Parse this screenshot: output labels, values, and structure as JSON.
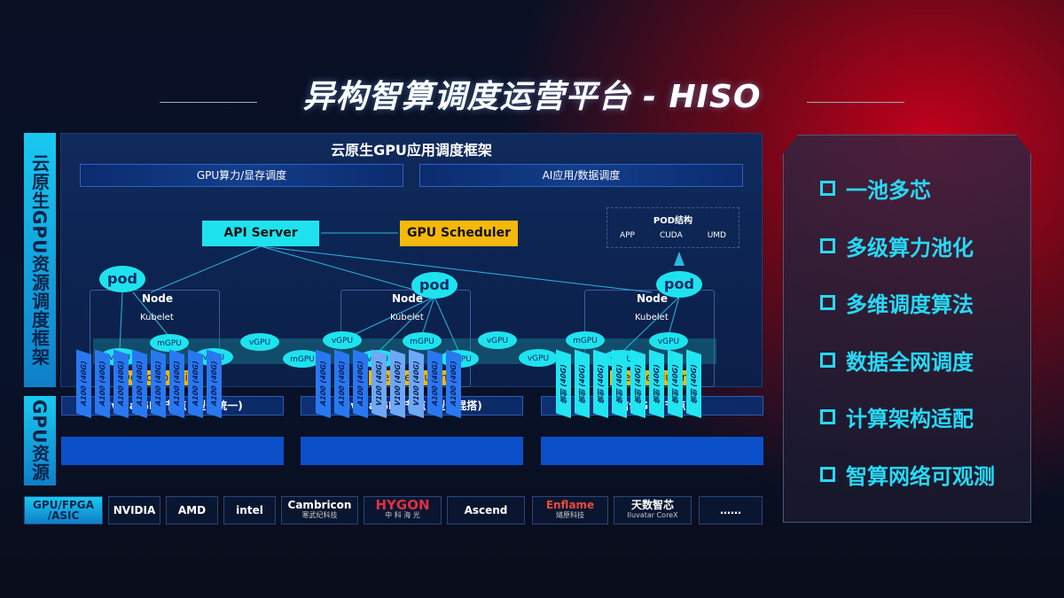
{
  "title": "异构智算调度运营平台 - HISO",
  "side_labels": {
    "framework": "云原生GPU资源调度框架",
    "resources": "GPU资源"
  },
  "framework": {
    "title": "云原生GPU应用调度框架",
    "bars": [
      "GPU算力/显存调度",
      "AI应用/数据调度"
    ],
    "api_server": "API Server",
    "gpu_scheduler": "GPU Scheduler",
    "pod_structure": {
      "title": "POD结构",
      "items": [
        "APP",
        "CUDA",
        "UMD"
      ]
    },
    "pod_label": "pod",
    "node_label": "Node",
    "kubelet_label": "Kubelet",
    "device_plugin": "Device plugin",
    "vgpu": "vGPU",
    "mgpu": "mGPU"
  },
  "gpu_nodes": [
    {
      "title": "Nvdia GPU节点 (型号统一)",
      "cards": [
        "A100 (40G)",
        "A100 (40G)",
        "A100 (40G)",
        "A100 (40G)",
        "A100 (40G)",
        "A100 (40G)",
        "A100 (40G)",
        "A100 (40G)"
      ]
    },
    {
      "title": "Nvdia GPU节点 (型号混搭)",
      "cards": [
        "A100 (40G)",
        "A100 (40G)",
        "A100 (40G)",
        "V100 (40G)",
        "V100 (40G)",
        "V100 (40G)",
        "A100 (40G)",
        "A100 (40G)"
      ]
    },
    {
      "title": "信创GPU节点",
      "cards": [
        "信创 (40G)",
        "信创 (40G)",
        "信创 (40G)",
        "信创 (40G)",
        "信创 (40G)",
        "信创 (40G)",
        "信创 (40G)",
        "信创 (40G)"
      ]
    }
  ],
  "vendors": {
    "category": [
      "GPU/FPGA",
      "/ASIC"
    ],
    "items": [
      [
        "NVIDIA",
        ""
      ],
      [
        "AMD",
        ""
      ],
      [
        "intel",
        ""
      ],
      [
        "Cambricon",
        "寒武纪科技"
      ],
      [
        "HYGON",
        "中 科 海 光"
      ],
      [
        "Ascend",
        ""
      ],
      [
        "Enflame",
        "燧原科技"
      ],
      [
        "天数智芯",
        "Iluvatar CoreX"
      ],
      [
        "……",
        ""
      ]
    ]
  },
  "features": [
    "一池多芯",
    "多级算力池化",
    "多维调度算法",
    "数据全网调度",
    "计算架构适配",
    "智算网络可观测"
  ],
  "colors": {
    "cyan": "#1ee3ee",
    "orange": "#f5b80c",
    "accent": "#27d9f5",
    "red": "#c4001c"
  }
}
